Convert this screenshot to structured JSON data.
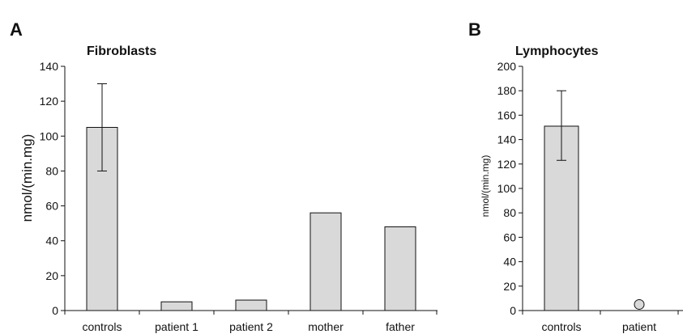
{
  "chart_data": [
    {
      "type": "bar",
      "panel": "A",
      "title": "Fibroblasts",
      "xlabel": "",
      "ylabel": "nmol/(min.mg)",
      "ylim": [
        0,
        140
      ],
      "yticks": [
        0,
        20,
        40,
        60,
        80,
        100,
        120,
        140
      ],
      "categories": [
        "controls",
        "patient 1",
        "patient 2",
        "mother",
        "father"
      ],
      "values": [
        105,
        5,
        6,
        56,
        48
      ],
      "error_bars": [
        {
          "category": "controls",
          "low": 80,
          "high": 130
        }
      ],
      "colors": {
        "bar": "#d9d9d9",
        "edge": "#000000"
      },
      "grid": false,
      "legend": "none"
    },
    {
      "type": "bar",
      "panel": "B",
      "title": "Lymphocytes",
      "xlabel": "",
      "ylabel": "nmol/(min.mg)",
      "ylim": [
        0,
        200
      ],
      "yticks": [
        0,
        20,
        40,
        60,
        80,
        100,
        120,
        140,
        160,
        180,
        200
      ],
      "categories": [
        "controls",
        "patient"
      ],
      "values": [
        151,
        5
      ],
      "value_markers": [
        {
          "category": "patient",
          "shape": "circle"
        }
      ],
      "error_bars": [
        {
          "category": "controls",
          "low": 123,
          "high": 180
        }
      ],
      "colors": {
        "bar": "#d9d9d9",
        "edge": "#000000"
      },
      "grid": false,
      "legend": "none"
    }
  ]
}
